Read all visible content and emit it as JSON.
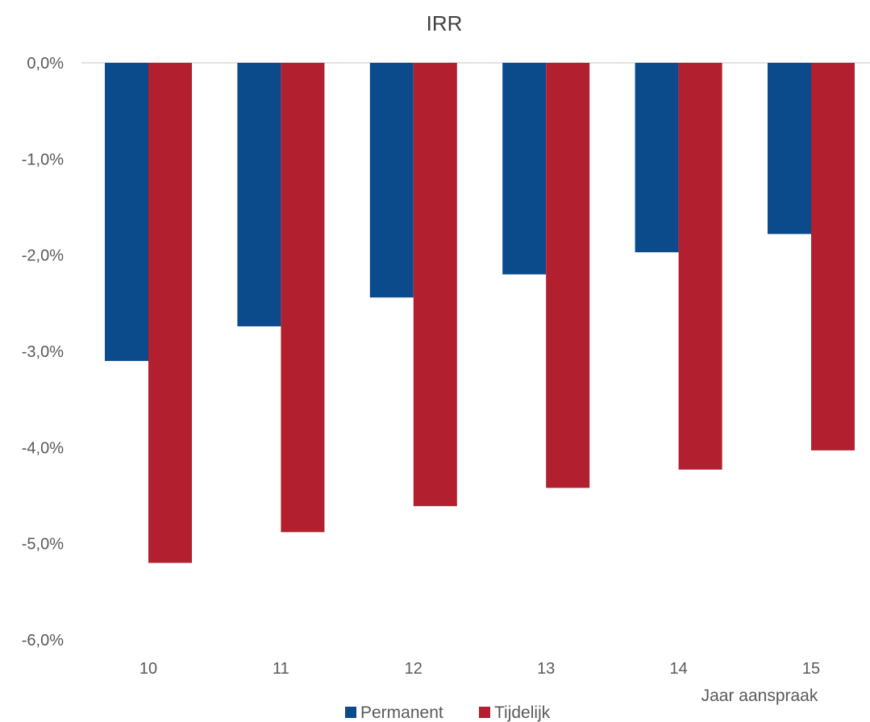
{
  "chart_data": {
    "type": "bar",
    "title": "IRR",
    "xlabel": "Jaar aanspraak",
    "ylabel": "",
    "categories": [
      "10",
      "11",
      "12",
      "13",
      "14",
      "15"
    ],
    "series": [
      {
        "name": "Permanent",
        "color": "#0b4a8b",
        "values": [
          -3.1,
          -2.74,
          -2.44,
          -2.2,
          -1.97,
          -1.78
        ]
      },
      {
        "name": "Tijdelijk",
        "color": "#b21f2f",
        "values": [
          -5.2,
          -4.88,
          -4.61,
          -4.42,
          -4.23,
          -4.03
        ]
      }
    ],
    "ylim": [
      -6,
      0
    ],
    "y_ticks": [
      0,
      -1,
      -2,
      -3,
      -4,
      -5,
      -6
    ],
    "y_tick_labels": [
      "0,0%",
      "-1,0%",
      "-2,0%",
      "-3,0%",
      "-4,0%",
      "-5,0%",
      "-6,0%"
    ],
    "grid": false,
    "legend_position": "bottom"
  }
}
